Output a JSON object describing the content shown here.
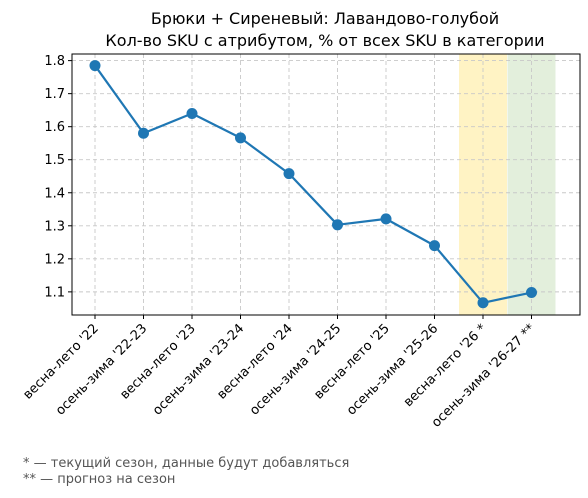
{
  "chart_data": {
    "type": "line",
    "title": "Брюки + Сиреневый: Лавандово-голубой",
    "subtitle": "Кол-во SKU с атрибутом, % от всех SKU в категории",
    "xlabel": "",
    "ylabel": "",
    "categories": [
      "весна-лето '22",
      "осень-зима '22-23",
      "весна-лето '23",
      "осень-зима '23-24",
      "весна-лето '24",
      "осень-зима '24-25",
      "весна-лето '25",
      "осень-зима '25-26",
      "весна-лето '26 *",
      "осень-зима '26-27 **"
    ],
    "series": [
      {
        "values": [
          1.785,
          1.58,
          1.64,
          1.566,
          1.458,
          1.303,
          1.321,
          1.24,
          1.067,
          1.098
        ]
      }
    ],
    "ylim": [
      1.03,
      1.82
    ],
    "yticks": [
      "1.1",
      "1.2",
      "1.3",
      "1.4",
      "1.5",
      "1.6",
      "1.7",
      "1.8"
    ],
    "grid": true,
    "line_color": "#1f77b4",
    "highlight_bands": [
      {
        "category_index": 8,
        "color": "#fff3c4"
      },
      {
        "category_index": 9,
        "color": "#e3efdc"
      }
    ]
  },
  "footnotes": [
    "* — текущий сезон, данные будут добавляться",
    "** — прогноз на сезон"
  ]
}
